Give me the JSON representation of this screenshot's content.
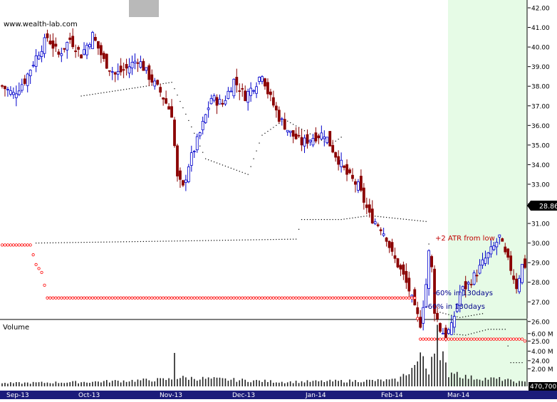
{
  "watermark": "www.wealth-lab.com",
  "price_label": "28.86",
  "volume_title": "Volume",
  "volume_label": "470,700",
  "annotations": {
    "atr": "+2 ATR from low",
    "drop1": "-60% in 130days",
    "drop2": "-60% in 130days"
  },
  "colors": {
    "bullish": "#0000cc",
    "bearish": "#8b0000",
    "ring": "#ff0000",
    "highlight": "#e6fbe6",
    "axis_bar": "#1c1c7a",
    "price_badge": "#000000"
  },
  "chart_data": {
    "type": "candlestick",
    "price_axis": {
      "ticks": [
        "42.00",
        "41.00",
        "40.00",
        "39.00",
        "38.00",
        "37.00",
        "36.00",
        "35.00",
        "34.00",
        "33.00",
        "32.00",
        "31.00",
        "30.00",
        "29.00",
        "28.00",
        "27.00",
        "26.00",
        "25.00",
        "24.00"
      ],
      "range": [
        23.5,
        42.2
      ]
    },
    "volume_axis": {
      "ticks": [
        "6.00 M",
        "4.00 M",
        "2.00 M"
      ],
      "range": [
        0,
        7.2
      ]
    },
    "x_axis": {
      "labels": [
        "Sep-13",
        "Oct-13",
        "Nov-13",
        "Dec-13",
        "Jan-14",
        "Feb-14",
        "Mar-14"
      ]
    },
    "highlight_region": {
      "from_label": "Mar-14",
      "note": "shaded area starts shortly before Mar-14"
    },
    "last_price": 28.86,
    "last_volume_m": 0.4707,
    "keypoints": [
      [
        0,
        38
      ],
      [
        4,
        37.6
      ],
      [
        8,
        38.3
      ],
      [
        12,
        39.5
      ],
      [
        16,
        40.5
      ],
      [
        20,
        39.6
      ],
      [
        24,
        40.4
      ],
      [
        28,
        39.6
      ],
      [
        32,
        40.6
      ],
      [
        36,
        39.3
      ],
      [
        40,
        38.6
      ],
      [
        44,
        38.9
      ],
      [
        48,
        39.4
      ],
      [
        52,
        38.5
      ],
      [
        56,
        37.7
      ],
      [
        60,
        36.6
      ],
      [
        62,
        33.3
      ],
      [
        64,
        32.8
      ],
      [
        66,
        34.0
      ],
      [
        70,
        35.6
      ],
      [
        74,
        37.4
      ],
      [
        78,
        37.1
      ],
      [
        82,
        38.3
      ],
      [
        86,
        37.5
      ],
      [
        90,
        38.2
      ],
      [
        92,
        38.7
      ],
      [
        94,
        37.7
      ],
      [
        98,
        36.4
      ],
      [
        102,
        35.6
      ],
      [
        106,
        35.1
      ],
      [
        110,
        35.4
      ],
      [
        114,
        35.6
      ],
      [
        118,
        34.5
      ],
      [
        122,
        33.5
      ],
      [
        126,
        32.9
      ],
      [
        130,
        31.4
      ],
      [
        134,
        30.8
      ],
      [
        136,
        30.3
      ],
      [
        138,
        29.4
      ],
      [
        140,
        28.9
      ],
      [
        142,
        28.3
      ],
      [
        144,
        27.6
      ],
      [
        146,
        26.6
      ],
      [
        148,
        25.9
      ],
      [
        150,
        27.9
      ],
      [
        151,
        29.5
      ],
      [
        152,
        28.7
      ],
      [
        153,
        26.6
      ],
      [
        155,
        25.6
      ],
      [
        157,
        25.3
      ],
      [
        159,
        25.7
      ],
      [
        162,
        27.5
      ],
      [
        165,
        27.9
      ],
      [
        168,
        28.5
      ],
      [
        171,
        29.2
      ],
      [
        174,
        29.8
      ],
      [
        176,
        30.3
      ],
      [
        178,
        29.4
      ],
      [
        180,
        28.7
      ],
      [
        182,
        27.8
      ],
      [
        184,
        28.86
      ]
    ],
    "volume_keypoints": [
      [
        0,
        0.35
      ],
      [
        30,
        0.5
      ],
      [
        60,
        0.8
      ],
      [
        61,
        3.8
      ],
      [
        62,
        1.0
      ],
      [
        100,
        0.5
      ],
      [
        140,
        0.7
      ],
      [
        143,
        1.5
      ],
      [
        145,
        2.0
      ],
      [
        149,
        3.5
      ],
      [
        150,
        2.2
      ],
      [
        151,
        1.8
      ],
      [
        154,
        7.0
      ],
      [
        155,
        2.5
      ],
      [
        156,
        3.2
      ],
      [
        158,
        1.4
      ],
      [
        160,
        1.8
      ],
      [
        162,
        1.3
      ],
      [
        165,
        1.0
      ],
      [
        170,
        0.9
      ],
      [
        178,
        0.8
      ],
      [
        180,
        0.6
      ],
      [
        184,
        0.47
      ]
    ],
    "series": [
      {
        "name": "upper trailing stop",
        "points": [
          [
            28,
            37.5
          ],
          [
            60,
            38.2
          ],
          [
            72,
            34.3
          ],
          [
            87,
            33.5
          ],
          [
            92,
            35.5
          ],
          [
            100,
            36.3
          ],
          [
            116,
            35.0
          ],
          [
            120,
            35.4
          ]
        ]
      },
      {
        "name": "middle trailing stop",
        "points": [
          [
            12,
            30.0
          ],
          [
            60,
            30.1
          ],
          [
            104,
            30.2
          ],
          [
            106,
            31.2
          ],
          [
            120,
            31.2
          ],
          [
            130,
            31.4
          ],
          [
            150,
            31.1
          ],
          [
            154,
            26.5
          ],
          [
            162,
            26.2
          ],
          [
            170,
            26.4
          ]
        ]
      },
      {
        "name": "lower trailing stop",
        "points": [
          [
            154,
            25.5
          ],
          [
            156,
            25.4
          ],
          [
            164,
            25.3
          ],
          [
            172,
            25.6
          ],
          [
            178,
            25.6
          ],
          [
            180,
            23.9
          ],
          [
            184,
            23.9
          ]
        ]
      },
      {
        "name": "ring stop",
        "points": [
          [
            0,
            29.9
          ],
          [
            10,
            29.9
          ],
          [
            12,
            28.9
          ],
          [
            14,
            28.5
          ],
          [
            16,
            27.2
          ],
          [
            146,
            27.2
          ],
          [
            148,
            25.1
          ],
          [
            184,
            25.1
          ],
          [
            185,
            25.0
          ]
        ]
      }
    ]
  }
}
